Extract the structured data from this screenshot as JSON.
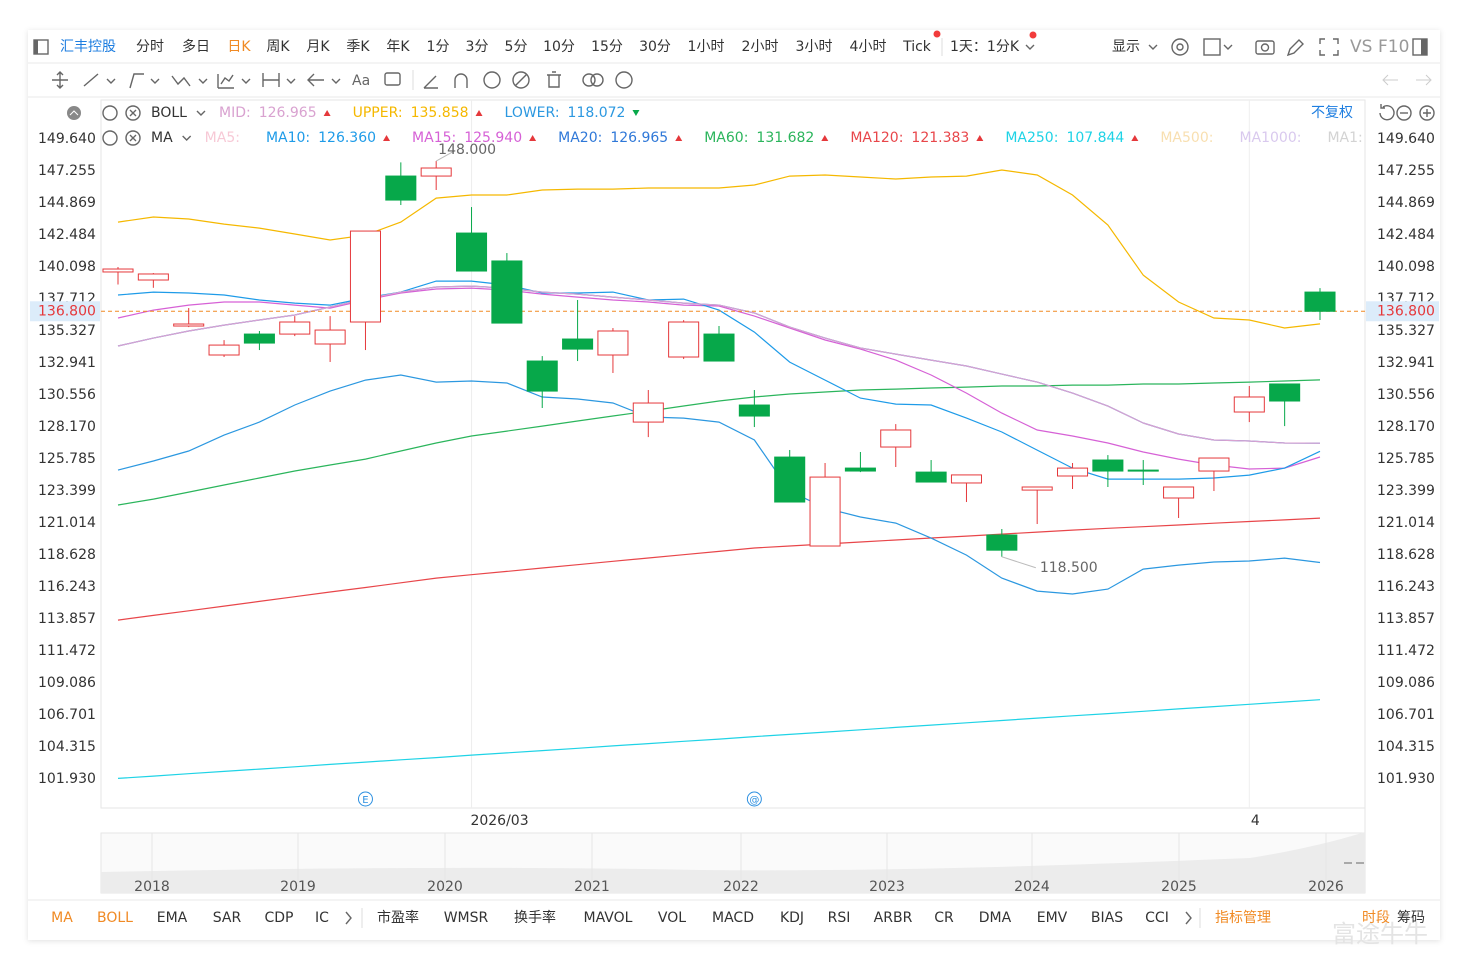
{
  "toolbar": {
    "symbol": "汇丰控股",
    "periods": [
      {
        "label": "分时"
      },
      {
        "label": "多日"
      },
      {
        "label": "日K",
        "active": true
      },
      {
        "label": "周K"
      },
      {
        "label": "月K"
      },
      {
        "label": "季K"
      },
      {
        "label": "年K"
      },
      {
        "label": "1分"
      },
      {
        "label": "3分"
      },
      {
        "label": "5分"
      },
      {
        "label": "10分"
      },
      {
        "label": "15分"
      },
      {
        "label": "30分"
      },
      {
        "label": "1小时"
      },
      {
        "label": "2小时"
      },
      {
        "label": "3小时"
      },
      {
        "label": "4小时"
      },
      {
        "label": "Tick"
      }
    ],
    "timeframe": "1天：1分K",
    "display": "显示",
    "vs": "VS",
    "f10": "F10"
  },
  "drawing_tools": {
    "text_tool": "Aa"
  },
  "adjust": "不复权",
  "event_icons": [
    "E",
    "@"
  ],
  "chart_data": {
    "type": "candlestick",
    "categories": [
      null,
      null,
      null,
      null,
      null,
      null,
      null,
      null,
      null,
      null,
      "2026/03",
      null,
      null,
      null,
      null,
      null,
      null,
      null,
      null,
      null,
      null,
      null,
      null,
      null,
      null,
      null,
      null,
      null,
      null,
      null,
      null,
      null,
      "4",
      null,
      null
    ],
    "open": [
      139.73,
      139.13,
      135.7,
      133.54,
      135.1,
      135.1,
      134.36,
      136.0,
      146.88,
      146.88,
      142.63,
      140.55,
      133.09,
      134.73,
      133.54,
      128.54,
      133.39,
      135.1,
      129.81,
      125.93,
      119.3,
      125.11,
      126.68,
      124.81,
      124.0,
      120.12,
      123.47,
      124.52,
      125.71,
      124.96,
      122.88,
      124.89,
      129.29,
      131.38,
      138.23
    ],
    "high": [
      140.1,
      139.65,
      137.04,
      134.65,
      135.33,
      136.44,
      136.44,
      142.78,
      147.9,
      148.0,
      144.57,
      141.14,
      133.46,
      137.64,
      135.55,
      130.93,
      136.14,
      135.7,
      130.93,
      126.46,
      125.49,
      126.31,
      128.39,
      125.71,
      124.6,
      120.57,
      123.7,
      125.49,
      126.08,
      125.71,
      123.7,
      125.86,
      131.23,
      131.38,
      138.53
    ],
    "low": [
      138.8,
      138.55,
      135.62,
      133.39,
      133.91,
      134.95,
      133.02,
      133.91,
      144.72,
      145.84,
      139.8,
      135.92,
      129.59,
      133.09,
      132.2,
      127.42,
      133.24,
      133.09,
      128.17,
      122.58,
      119.3,
      124.81,
      125.19,
      124.07,
      122.58,
      118.5,
      120.94,
      123.55,
      123.7,
      123.85,
      121.39,
      123.4,
      128.54,
      128.24,
      136.15
    ],
    "close": [
      139.95,
      139.58,
      135.85,
      134.28,
      134.43,
      136.0,
      135.4,
      142.78,
      145.09,
      147.48,
      139.8,
      135.92,
      130.85,
      133.98,
      135.33,
      129.96,
      136.0,
      133.09,
      128.99,
      122.58,
      124.44,
      124.89,
      127.95,
      124.07,
      124.6,
      118.99,
      123.7,
      125.11,
      124.89,
      124.96,
      123.7,
      125.86,
      130.41,
      130.11,
      136.8
    ],
    "up_color": "#e5383b",
    "down_color": "#07a84a",
    "max_label": "148.000",
    "min_label": "118.500",
    "ylim": [
      99.77,
      152.55
    ],
    "yticks": [
      {
        "value": 149.64,
        "label": "149.640"
      },
      147.255,
      144.869,
      142.484,
      140.098,
      137.712,
      135.327,
      132.941,
      130.556,
      {
        "value": 128.17,
        "label": "128.170"
      },
      125.785,
      123.399,
      121.014,
      118.628,
      116.243,
      113.857,
      111.472,
      109.086,
      106.701,
      104.315,
      {
        "value": 101.93,
        "label": "101.930"
      }
    ],
    "last_price": {
      "value": 136.8,
      "label": "136.800"
    },
    "last_price_color": "#f08a24",
    "indicator_rows": [
      {
        "label": "BOLL",
        "lines": [
          {
            "name": "MID:",
            "color": "#d9a2d0",
            "last": "126.965",
            "trend": "up",
            "values": [
              134.21,
              134.8,
              135.33,
              135.77,
              136.15,
              136.52,
              137.12,
              137.71,
              138.23,
              138.61,
              138.68,
              138.53,
              138.23,
              138.08,
              137.86,
              137.64,
              137.41,
              137.26,
              136.67,
              135.62,
              134.8,
              134.06,
              133.61,
              133.16,
              132.72,
              132.12,
              131.52,
              130.7,
              129.73,
              128.47,
              127.65,
              127.2,
              127.13,
              126.98,
              126.965
            ]
          },
          {
            "name": "UPPER:",
            "color": "#f5b800",
            "last": "135.858",
            "trend": "up",
            "values": [
              143.45,
              143.83,
              143.68,
              143.3,
              143.0,
              142.56,
              142.11,
              142.48,
              143.45,
              145.24,
              145.47,
              145.47,
              145.84,
              145.91,
              145.91,
              145.99,
              145.99,
              145.99,
              146.21,
              146.88,
              146.96,
              146.81,
              146.66,
              146.81,
              146.88,
              147.33,
              146.96,
              145.47,
              143.23,
              139.5,
              137.49,
              136.3,
              136.15,
              135.55,
              135.858
            ]
          },
          {
            "name": "LOWER:",
            "color": "#2c98e0",
            "last": "118.072",
            "trend": "down",
            "values": [
              124.96,
              125.64,
              126.38,
              127.57,
              128.54,
              129.81,
              130.85,
              131.67,
              132.05,
              131.52,
              131.6,
              131.45,
              130.41,
              130.26,
              129.96,
              128.92,
              128.84,
              128.54,
              127.2,
              123.4,
              122.13,
              121.46,
              121.01,
              119.89,
              118.62,
              116.91,
              115.94,
              115.72,
              116.09,
              117.58,
              117.88,
              118.11,
              118.18,
              118.4,
              118.072
            ]
          }
        ]
      },
      {
        "label": "MA",
        "lines": [
          {
            "name": "MA5:",
            "color": "#f7c9d6",
            "muted": true
          },
          {
            "name": "MA10:",
            "color": "#1e9be8",
            "last": "126.360",
            "trend": "up",
            "values": [
              138.01,
              138.23,
              138.16,
              138.01,
              137.64,
              137.41,
              137.26,
              137.79,
              138.23,
              139.05,
              139.05,
              138.76,
              138.16,
              138.16,
              138.23,
              137.64,
              137.71,
              136.89,
              135.25,
              133.01,
              131.67,
              130.33,
              129.88,
              129.81,
              128.84,
              127.8,
              126.45,
              125.11,
              124.29,
              124.29,
              124.29,
              124.37,
              124.59,
              125.11,
              126.36
            ]
          },
          {
            "name": "MA15:",
            "color": "#d661d6",
            "last": "125.940",
            "trend": "up",
            "values": [
              136.3,
              136.89,
              137.26,
              137.49,
              137.49,
              137.26,
              137.04,
              137.64,
              138.16,
              138.46,
              138.53,
              138.38,
              138.08,
              137.86,
              137.64,
              137.49,
              137.26,
              137.19,
              136.44,
              135.55,
              134.66,
              133.98,
              133.16,
              132.05,
              130.7,
              129.21,
              127.95,
              127.5,
              126.98,
              126.31,
              125.78,
              125.34,
              125.04,
              125.11,
              125.94
            ]
          },
          {
            "name": "MA20:",
            "color": "#2f78d8",
            "last": "126.965",
            "trend": "up",
            "values": [
              134.21,
              134.8,
              135.33,
              135.77,
              136.15,
              136.52,
              137.12,
              137.71,
              138.23,
              138.61,
              138.68,
              138.53,
              138.23,
              138.08,
              137.86,
              137.64,
              137.41,
              137.26,
              136.67,
              135.62,
              134.8,
              134.06,
              133.61,
              133.16,
              132.72,
              132.12,
              131.52,
              130.7,
              129.73,
              128.47,
              127.65,
              127.2,
              127.13,
              126.98,
              126.965
            ]
          },
          {
            "name": "MA60:",
            "color": "#2bb55c",
            "last": "131.682",
            "trend": "up",
            "values": [
              122.36,
              122.8,
              123.32,
              123.85,
              124.37,
              124.89,
              125.34,
              125.78,
              126.38,
              126.98,
              127.5,
              127.87,
              128.24,
              128.62,
              128.99,
              129.36,
              129.74,
              130.11,
              130.41,
              130.63,
              130.78,
              130.93,
              131.0,
              131.08,
              131.15,
              131.23,
              131.23,
              131.3,
              131.3,
              131.38,
              131.38,
              131.45,
              131.52,
              131.6,
              131.682
            ]
          },
          {
            "name": "MA120:",
            "color": "#e8464a",
            "last": "121.383",
            "trend": "up",
            "values": [
              113.78,
              114.13,
              114.47,
              114.82,
              115.17,
              115.52,
              115.87,
              116.21,
              116.56,
              116.91,
              117.16,
              117.41,
              117.66,
              117.91,
              118.16,
              118.41,
              118.65,
              118.9,
              119.15,
              119.3,
              119.45,
              119.6,
              119.75,
              119.9,
              120.04,
              120.19,
              120.34,
              120.49,
              120.62,
              120.74,
              120.87,
              121.0,
              121.13,
              121.25,
              121.383
            ]
          },
          {
            "name": "MA250:",
            "color": "#1fd3e6",
            "last": "107.844",
            "trend": "up",
            "values": [
              101.98,
              102.15,
              102.33,
              102.5,
              102.67,
              102.84,
              103.02,
              103.19,
              103.36,
              103.53,
              103.71,
              103.88,
              104.05,
              104.22,
              104.4,
              104.57,
              104.74,
              104.91,
              105.09,
              105.26,
              105.43,
              105.6,
              105.78,
              105.95,
              106.12,
              106.29,
              106.47,
              106.64,
              106.81,
              106.98,
              107.16,
              107.33,
              107.5,
              107.67,
              107.844
            ]
          },
          {
            "name": "MA500:",
            "color": "#f8dfb0",
            "muted": true
          },
          {
            "name": "MA1000:",
            "color": "#d9c9ee",
            "muted": true
          },
          {
            "name": "MA1:",
            "color": "#d3d3d3",
            "muted": true
          }
        ]
      }
    ],
    "navigator_years": [
      "2018",
      "2019",
      "2020",
      "2021",
      "2022",
      "2023",
      "2024",
      "2025",
      "2026"
    ]
  },
  "indicator_tabs": [
    {
      "label": "MA",
      "active": true
    },
    {
      "label": "BOLL",
      "active": true
    },
    {
      "label": "EMA"
    },
    {
      "label": "SAR"
    },
    {
      "label": "CDP"
    },
    {
      "label": "IC"
    },
    {
      "label": "市盈率"
    },
    {
      "label": "WMSR"
    },
    {
      "label": "换手率"
    },
    {
      "label": "MAVOL"
    },
    {
      "label": "VOL"
    },
    {
      "label": "MACD"
    },
    {
      "label": "KDJ"
    },
    {
      "label": "RSI"
    },
    {
      "label": "ARBR"
    },
    {
      "label": "CR"
    },
    {
      "label": "DMA"
    },
    {
      "label": "EMV"
    },
    {
      "label": "BIAS"
    },
    {
      "label": "CCI"
    }
  ],
  "indicator_manage": "指标管理",
  "session": "时段",
  "chips": "筹码",
  "watermark": "富途牛牛"
}
